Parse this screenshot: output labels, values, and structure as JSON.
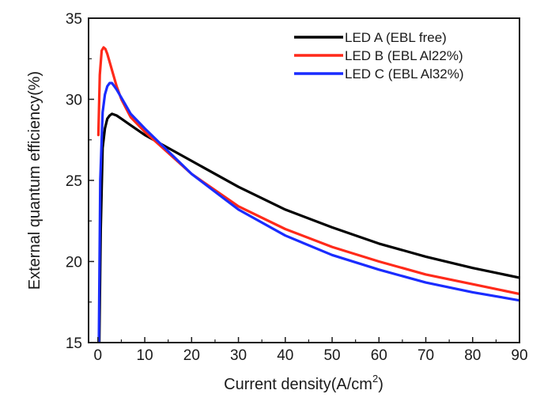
{
  "chart_data": {
    "type": "line",
    "title": "",
    "xlabel": "Current density(A/cm",
    "xlabel_superscript": "2",
    "xlabel_suffix": ")",
    "ylabel": "External quantum efficiency(%)",
    "xlim": [
      -2,
      90
    ],
    "ylim": [
      15,
      35
    ],
    "xticks": [
      0,
      10,
      20,
      30,
      40,
      50,
      60,
      70,
      80,
      90
    ],
    "yticks": [
      15,
      20,
      25,
      30,
      35
    ],
    "legend_position": "top-right",
    "grid": false,
    "series": [
      {
        "name": "LED A (EBL free)",
        "color": "#000000",
        "x": [
          0.3,
          0.6,
          1,
          1.5,
          2,
          2.5,
          3,
          4,
          5,
          7,
          10,
          15,
          20,
          30,
          40,
          50,
          60,
          70,
          80,
          90
        ],
        "y": [
          15,
          22,
          27,
          28.2,
          28.8,
          29.0,
          29.1,
          29.0,
          28.8,
          28.4,
          27.8,
          27.0,
          26.2,
          24.6,
          23.2,
          22.1,
          21.1,
          20.3,
          19.6,
          19.0
        ]
      },
      {
        "name": "LED B (EBL Al22%)",
        "color": "#ff2a1a",
        "x": [
          0.1,
          0.4,
          0.8,
          1.2,
          1.6,
          2,
          2.5,
          3,
          4,
          5,
          7,
          10,
          15,
          20,
          30,
          40,
          50,
          60,
          70,
          80,
          90
        ],
        "y": [
          27.8,
          31.5,
          33.0,
          33.2,
          33.1,
          32.8,
          32.3,
          31.8,
          30.8,
          30.0,
          28.9,
          28.0,
          26.7,
          25.4,
          23.4,
          22.0,
          20.9,
          20.0,
          19.2,
          18.6,
          18.0
        ]
      },
      {
        "name": "LED C (EBL Al32%)",
        "color": "#1a2cff",
        "x": [
          0.2,
          0.5,
          1,
          1.5,
          2,
          2.5,
          3,
          3.5,
          4,
          5,
          7,
          10,
          15,
          20,
          30,
          40,
          50,
          60,
          70,
          80,
          90
        ],
        "y": [
          15,
          25,
          29.2,
          30.3,
          30.8,
          31.0,
          31.0,
          30.8,
          30.6,
          30.1,
          29.1,
          28.2,
          26.8,
          25.4,
          23.2,
          21.6,
          20.4,
          19.5,
          18.7,
          18.1,
          17.6
        ]
      }
    ]
  }
}
